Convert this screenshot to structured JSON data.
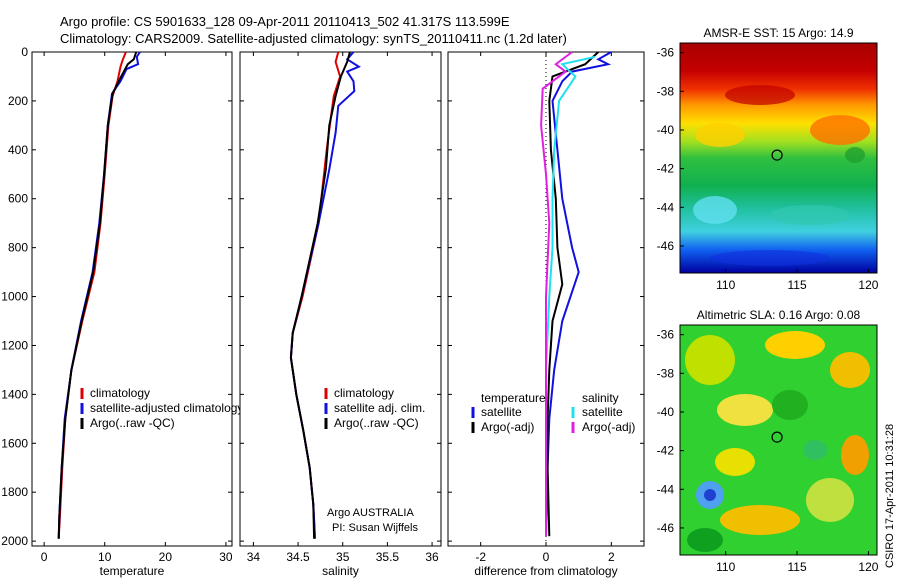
{
  "header": {
    "line1": "Argo profile: CS 5901633_128 09-Apr-2011 20110413_502 41.317S 113.599E",
    "line2": "Climatology: CARS2009. Satellite-adjusted climatology: synTS_20110411.nc (1.2d later)"
  },
  "side_caption": "CSIRO 17-Apr-2011 10:31:28",
  "colors": {
    "red": "#e00000",
    "blue": "#1010e0",
    "black": "#000000",
    "cyan": "#20e0f0",
    "magenta": "#e020e0"
  },
  "chart_data": [
    {
      "id": "temperature",
      "type": "line",
      "xlabel": "temperature",
      "ylim": [
        2020,
        0
      ],
      "xlim": [
        -2,
        31
      ],
      "xticks": [
        0,
        10,
        20,
        30
      ],
      "xtick_labels": [
        "0",
        "10",
        "20",
        "30"
      ],
      "yticks": [
        0,
        200,
        400,
        600,
        800,
        1000,
        1200,
        1400,
        1600,
        1800,
        2000
      ],
      "ytick_labels": [
        "0",
        "200",
        "400",
        "600",
        "800",
        "1000",
        "1200",
        "1400",
        "1600",
        "1800",
        "2000"
      ],
      "legend": [
        "climatology",
        "satellite-adjusted climatology",
        "Argo(..raw -QC)"
      ],
      "series": [
        {
          "name": "climatology",
          "color": "#e00000",
          "points": [
            [
              13.5,
              0
            ],
            [
              13.0,
              30
            ],
            [
              12.6,
              60
            ],
            [
              12.1,
              120
            ],
            [
              11.3,
              180
            ],
            [
              10.6,
              300
            ],
            [
              10.0,
              500
            ],
            [
              9.3,
              700
            ],
            [
              8.3,
              900
            ],
            [
              6.3,
              1100
            ],
            [
              4.5,
              1300
            ],
            [
              3.5,
              1500
            ],
            [
              3.0,
              1700
            ],
            [
              2.6,
              1900
            ],
            [
              2.4,
              1990
            ]
          ]
        },
        {
          "name": "satellite-adjusted climatology",
          "color": "#1010e0",
          "points": [
            [
              15.8,
              0
            ],
            [
              15.3,
              20
            ],
            [
              15.5,
              50
            ],
            [
              13.6,
              70
            ],
            [
              12.6,
              120
            ],
            [
              11.2,
              170
            ],
            [
              10.5,
              300
            ],
            [
              9.9,
              500
            ],
            [
              9.1,
              700
            ],
            [
              8.0,
              900
            ],
            [
              6.1,
              1100
            ],
            [
              4.5,
              1300
            ],
            [
              3.4,
              1500
            ],
            [
              2.9,
              1700
            ],
            [
              2.5,
              1900
            ],
            [
              2.4,
              1990
            ]
          ]
        },
        {
          "name": "Argo(..raw -QC)",
          "color": "#000000",
          "points": [
            [
              15.2,
              0
            ],
            [
              14.8,
              30
            ],
            [
              13.8,
              50
            ],
            [
              12.5,
              110
            ],
            [
              11.3,
              170
            ],
            [
              10.5,
              300
            ],
            [
              9.9,
              500
            ],
            [
              9.2,
              700
            ],
            [
              8.1,
              900
            ],
            [
              6.2,
              1100
            ],
            [
              4.5,
              1300
            ],
            [
              3.5,
              1500
            ],
            [
              2.9,
              1700
            ],
            [
              2.5,
              1900
            ],
            [
              2.4,
              1990
            ]
          ]
        }
      ]
    },
    {
      "id": "salinity",
      "type": "line",
      "xlabel": "salinity",
      "ylim": [
        2020,
        0
      ],
      "xlim": [
        33.85,
        36.1
      ],
      "xticks": [
        34,
        34.5,
        35,
        35.5,
        36
      ],
      "xtick_labels": [
        "34",
        "34.5",
        "35",
        "35.5",
        "36"
      ],
      "yticks": [
        0,
        200,
        400,
        600,
        800,
        1000,
        1200,
        1400,
        1600,
        1800,
        2000
      ],
      "legend": [
        "climatology",
        "satellite adj. clim.",
        "Argo(..raw -QC)"
      ],
      "annotation": [
        "Argo AUSTRALIA",
        "PI: Susan Wijffels"
      ],
      "series": [
        {
          "name": "climatology",
          "color": "#e00000",
          "points": [
            [
              34.95,
              0
            ],
            [
              34.92,
              40
            ],
            [
              34.97,
              100
            ],
            [
              34.9,
              180
            ],
            [
              34.87,
              260
            ],
            [
              34.82,
              400
            ],
            [
              34.73,
              700
            ],
            [
              34.55,
              1000
            ],
            [
              34.44,
              1150
            ],
            [
              34.42,
              1250
            ],
            [
              34.48,
              1400
            ],
            [
              34.56,
              1550
            ],
            [
              34.63,
              1700
            ],
            [
              34.67,
              1850
            ],
            [
              34.69,
              1990
            ]
          ]
        },
        {
          "name": "satellite adj. clim.",
          "color": "#1010e0",
          "points": [
            [
              35.12,
              0
            ],
            [
              35.05,
              30
            ],
            [
              35.18,
              60
            ],
            [
              35.05,
              80
            ],
            [
              35.12,
              120
            ],
            [
              35.13,
              160
            ],
            [
              34.95,
              220
            ],
            [
              34.92,
              330
            ],
            [
              34.85,
              480
            ],
            [
              34.73,
              700
            ],
            [
              34.54,
              1000
            ],
            [
              34.44,
              1150
            ],
            [
              34.42,
              1250
            ],
            [
              34.48,
              1400
            ],
            [
              34.56,
              1550
            ],
            [
              34.63,
              1700
            ],
            [
              34.67,
              1850
            ],
            [
              34.69,
              1990
            ]
          ]
        },
        {
          "name": "Argo(..raw -QC)",
          "color": "#000000",
          "points": [
            [
              35.08,
              0
            ],
            [
              35.05,
              40
            ],
            [
              34.98,
              100
            ],
            [
              34.92,
              180
            ],
            [
              34.85,
              300
            ],
            [
              34.81,
              480
            ],
            [
              34.72,
              700
            ],
            [
              34.54,
              1000
            ],
            [
              34.44,
              1150
            ],
            [
              34.42,
              1250
            ],
            [
              34.48,
              1400
            ],
            [
              34.56,
              1550
            ],
            [
              34.63,
              1700
            ],
            [
              34.67,
              1850
            ],
            [
              34.68,
              1990
            ]
          ]
        }
      ]
    },
    {
      "id": "difference",
      "type": "line",
      "xlabel": "difference from climatology",
      "ylim": [
        2020,
        0
      ],
      "xlim": [
        -3.0,
        3.0
      ],
      "xticks": [
        -2,
        0,
        2
      ],
      "xtick_labels": [
        "-2",
        "0",
        "2"
      ],
      "yticks": [
        0,
        200,
        400,
        600,
        800,
        1000,
        1200,
        1400,
        1600,
        1800,
        2000
      ],
      "legend_left": {
        "title": "temperature",
        "items": [
          "satellite",
          "Argo(-adj)"
        ]
      },
      "legend_right": {
        "title": "salinity",
        "items": [
          "satellite",
          "Argo(-adj)"
        ]
      },
      "series": [
        {
          "name": "temperature satellite",
          "color": "#1010e0",
          "points": [
            [
              2.0,
              0
            ],
            [
              1.6,
              30
            ],
            [
              1.9,
              50
            ],
            [
              0.8,
              80
            ],
            [
              0.5,
              120
            ],
            [
              0.2,
              200
            ],
            [
              0.35,
              400
            ],
            [
              0.5,
              600
            ],
            [
              0.8,
              800
            ],
            [
              1.0,
              900
            ],
            [
              0.5,
              1100
            ],
            [
              0.25,
              1300
            ],
            [
              0.1,
              1500
            ],
            [
              0.05,
              1700
            ],
            [
              0.0,
              1980
            ]
          ]
        },
        {
          "name": "temperature Argo(-adj)",
          "color": "#000000",
          "points": [
            [
              1.6,
              0
            ],
            [
              1.2,
              50
            ],
            [
              0.2,
              100
            ],
            [
              0.1,
              200
            ],
            [
              0.15,
              400
            ],
            [
              0.3,
              600
            ],
            [
              0.35,
              800
            ],
            [
              0.5,
              950
            ],
            [
              0.2,
              1100
            ],
            [
              0.1,
              1300
            ],
            [
              0.05,
              1500
            ],
            [
              0.05,
              1700
            ],
            [
              0.1,
              1980
            ]
          ]
        },
        {
          "name": "salinity satellite",
          "color": "#20e0f0",
          "points": [
            [
              1.5,
              20
            ],
            [
              0.5,
              50
            ],
            [
              0.9,
              100
            ],
            [
              0.4,
              200
            ],
            [
              0.25,
              400
            ],
            [
              0.2,
              600
            ],
            [
              0.2,
              800
            ],
            [
              0.1,
              1000
            ],
            [
              0.0,
              1300
            ],
            [
              0.0,
              1600
            ],
            [
              0.0,
              1980
            ]
          ]
        },
        {
          "name": "salinity Argo(-adj)",
          "color": "#e020e0",
          "points": [
            [
              0.8,
              0
            ],
            [
              0.3,
              50
            ],
            [
              0.6,
              80
            ],
            [
              -0.1,
              150
            ],
            [
              -0.15,
              300
            ],
            [
              0.0,
              500
            ],
            [
              0.1,
              700
            ],
            [
              0.0,
              1000
            ],
            [
              0.0,
              1300
            ],
            [
              0.0,
              1600
            ],
            [
              0.0,
              1980
            ]
          ]
        }
      ]
    },
    {
      "id": "amsre_sst",
      "type": "heatmap",
      "title": "AMSR-E SST: 15 Argo: 14.9",
      "xlim": [
        106.8,
        120.6
      ],
      "ylim": [
        -47.4,
        -35.5
      ],
      "xticks": [
        110,
        115,
        120
      ],
      "xtick_labels": [
        "110",
        "115",
        "120"
      ],
      "yticks": [
        -36,
        -38,
        -40,
        -42,
        -44,
        -46
      ],
      "ytick_labels": [
        "-36",
        "-38",
        "-40",
        "-42",
        "-44",
        "-46"
      ],
      "marker": {
        "lon": 113.6,
        "lat": -41.3
      }
    },
    {
      "id": "altimetric_sla",
      "type": "heatmap",
      "title": "Altimetric SLA: 0.16 Argo: 0.08",
      "xlim": [
        106.8,
        120.6
      ],
      "ylim": [
        -47.4,
        -35.5
      ],
      "xticks": [
        110,
        115,
        120
      ],
      "xtick_labels": [
        "110",
        "115",
        "120"
      ],
      "yticks": [
        -36,
        -38,
        -40,
        -42,
        -44,
        -46
      ],
      "ytick_labels": [
        "-36",
        "-38",
        "-40",
        "-42",
        "-44",
        "-46"
      ],
      "marker": {
        "lon": 113.6,
        "lat": -41.3
      }
    }
  ]
}
